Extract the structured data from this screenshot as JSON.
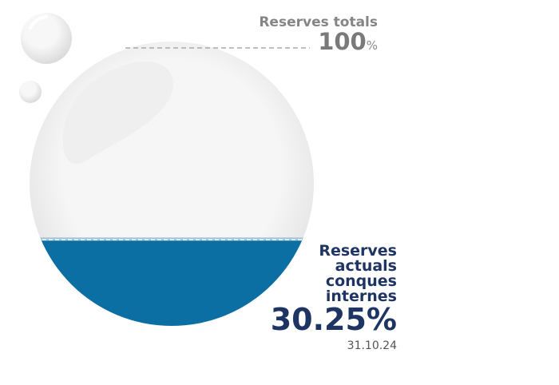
{
  "chart_data": {
    "type": "gauge",
    "total": {
      "label": "Reserves totals",
      "value": 100,
      "unit": "%"
    },
    "current": {
      "label_lines": [
        "Reserves",
        "actuals",
        "conques",
        "internes"
      ],
      "value": 30.25,
      "value_label": "30.25%",
      "date": "31.10.24",
      "color": "#0b6fa4"
    },
    "ylim": [
      0,
      100
    ]
  }
}
